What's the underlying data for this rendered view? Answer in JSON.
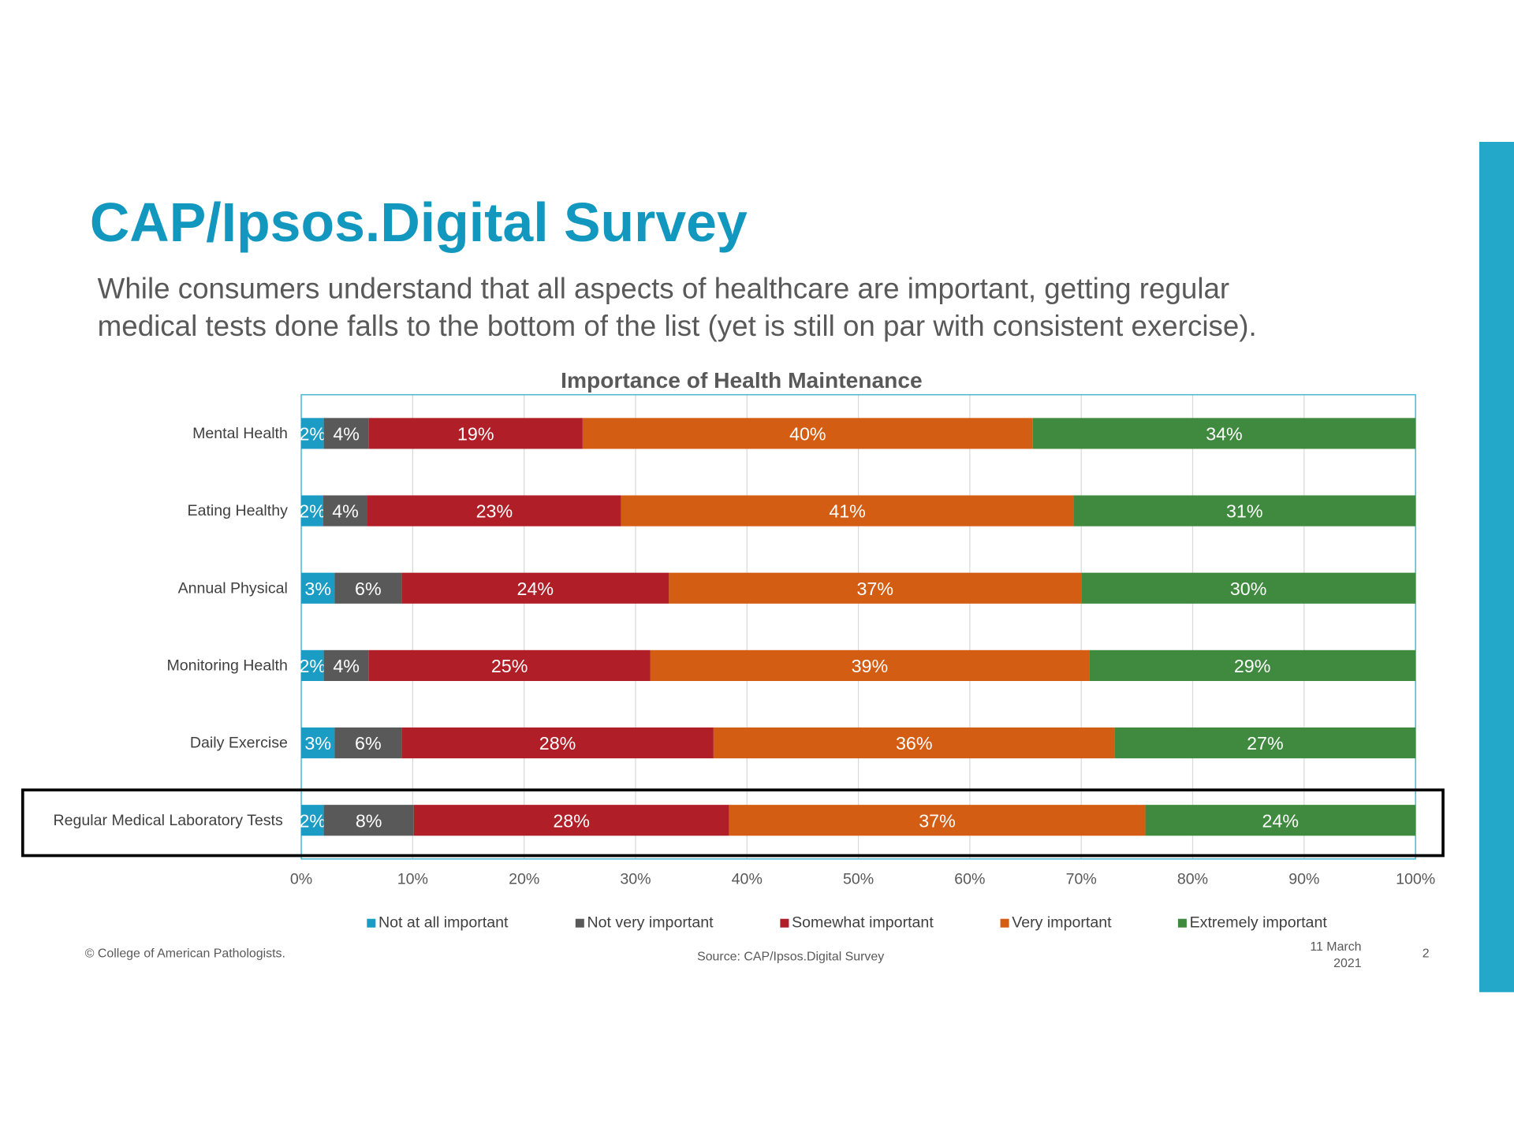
{
  "slide": {
    "title": "CAP/Ipsos.Digital Survey",
    "subtitle_line1": "While consumers understand that all aspects of healthcare are important, getting regular",
    "subtitle_line2": "medical tests done falls to the bottom of the list (yet is still on par with consistent exercise).",
    "copyright": "© College of American Pathologists.",
    "source": "Source: CAP/Ipsos.Digital Survey",
    "date_line1": "11 March",
    "date_line2": "2021",
    "page_number": "2",
    "accent_color": "#23a8c9",
    "highlighted_category": "Regular Medical Laboratory Tests"
  },
  "chart_data": {
    "type": "bar",
    "orientation": "horizontal",
    "stacked": "100%",
    "title": "Importance of Health Maintenance",
    "categories": [
      "Mental Health",
      "Eating Healthy",
      "Annual Physical",
      "Monitoring Health",
      "Daily Exercise",
      "Regular Medical Laboratory Tests"
    ],
    "series": [
      {
        "name": "Not at all important",
        "color": "#1a9cc4",
        "values": [
          2,
          2,
          3,
          2,
          3,
          2
        ]
      },
      {
        "name": "Not very important",
        "color": "#595959",
        "values": [
          4,
          4,
          6,
          4,
          6,
          8
        ]
      },
      {
        "name": "Somewhat important",
        "color": "#b01e28",
        "values": [
          19,
          23,
          24,
          25,
          28,
          28
        ]
      },
      {
        "name": "Very important",
        "color": "#d45d14",
        "values": [
          40,
          41,
          37,
          39,
          36,
          37
        ]
      },
      {
        "name": "Extremely important",
        "color": "#3f8a3e",
        "values": [
          34,
          31,
          30,
          29,
          27,
          24
        ]
      }
    ],
    "xlim": [
      0,
      100
    ],
    "x_ticks": [
      "0%",
      "10%",
      "20%",
      "30%",
      "40%",
      "50%",
      "60%",
      "70%",
      "80%",
      "90%",
      "100%"
    ],
    "grid": true,
    "legend": "bottom",
    "data_labels": true
  }
}
